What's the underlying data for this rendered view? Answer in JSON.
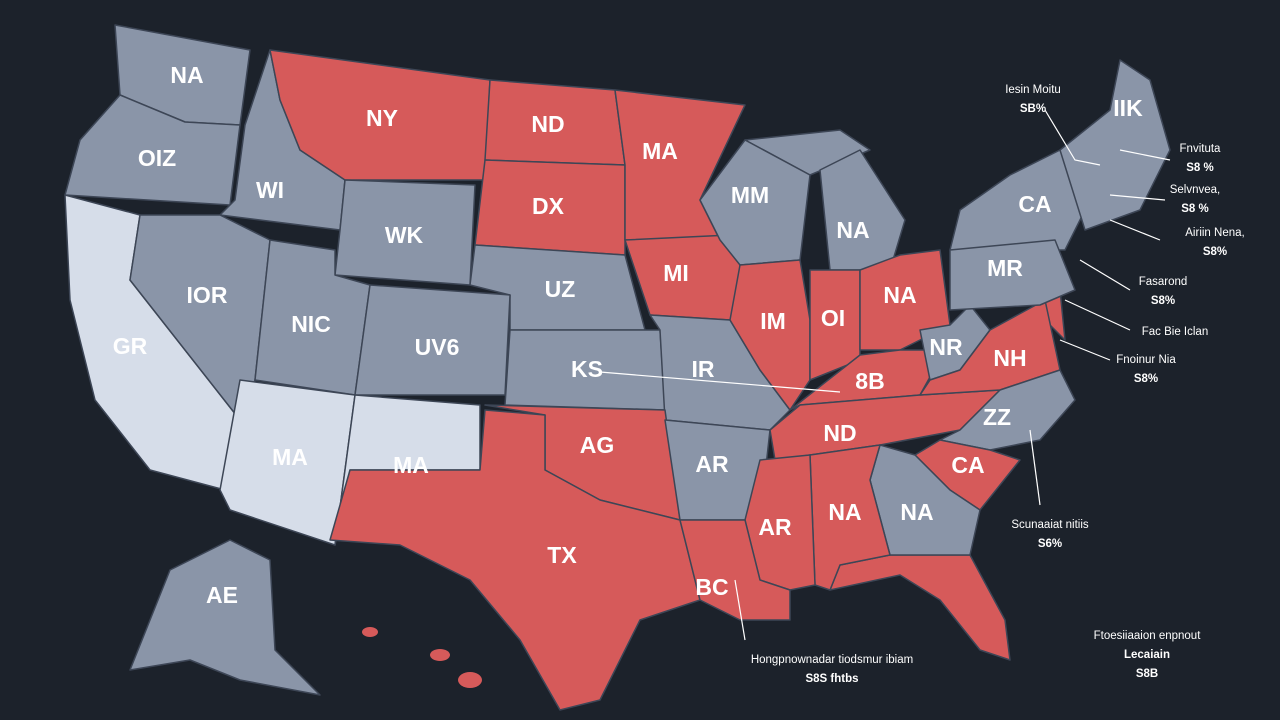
{
  "states": [
    "NA",
    "OIZ",
    "GR",
    "WI",
    "NY",
    "ND",
    "DX",
    "WK",
    "IOR",
    "NIC",
    "UZ",
    "UV6",
    "MA",
    "MI",
    "MM",
    "NA",
    "KS",
    "IR",
    "IM",
    "OI",
    "NA",
    "MA",
    "MA",
    "AG",
    "TX",
    "AR",
    "8B",
    "ND",
    "NR",
    "NH",
    "ZZ",
    "CA",
    "NA",
    "NA",
    "AR",
    "BC",
    "CA",
    "MR",
    "IIK",
    "AE"
  ],
  "callouts": [
    [
      "Iesin Moitu",
      "SB%"
    ],
    [
      "Fnvituta",
      "S8 %"
    ],
    [
      "Selvnvea,",
      "S8 %"
    ],
    [
      "Airiin Nena,",
      "S8%"
    ],
    [
      "Fasarond",
      "S8%"
    ],
    [
      "Fac Bie Iclan"
    ],
    [
      "Fnoinur Nia",
      "S8%"
    ],
    [
      "Scunaaiat nitiis",
      "S6%"
    ],
    [
      "Hongpnownadar tiodsmur ibiam",
      "S8S fhtbs"
    ],
    [
      "Ftoesiiaaion enpnout",
      "Lecaiain",
      "S8B"
    ]
  ]
}
